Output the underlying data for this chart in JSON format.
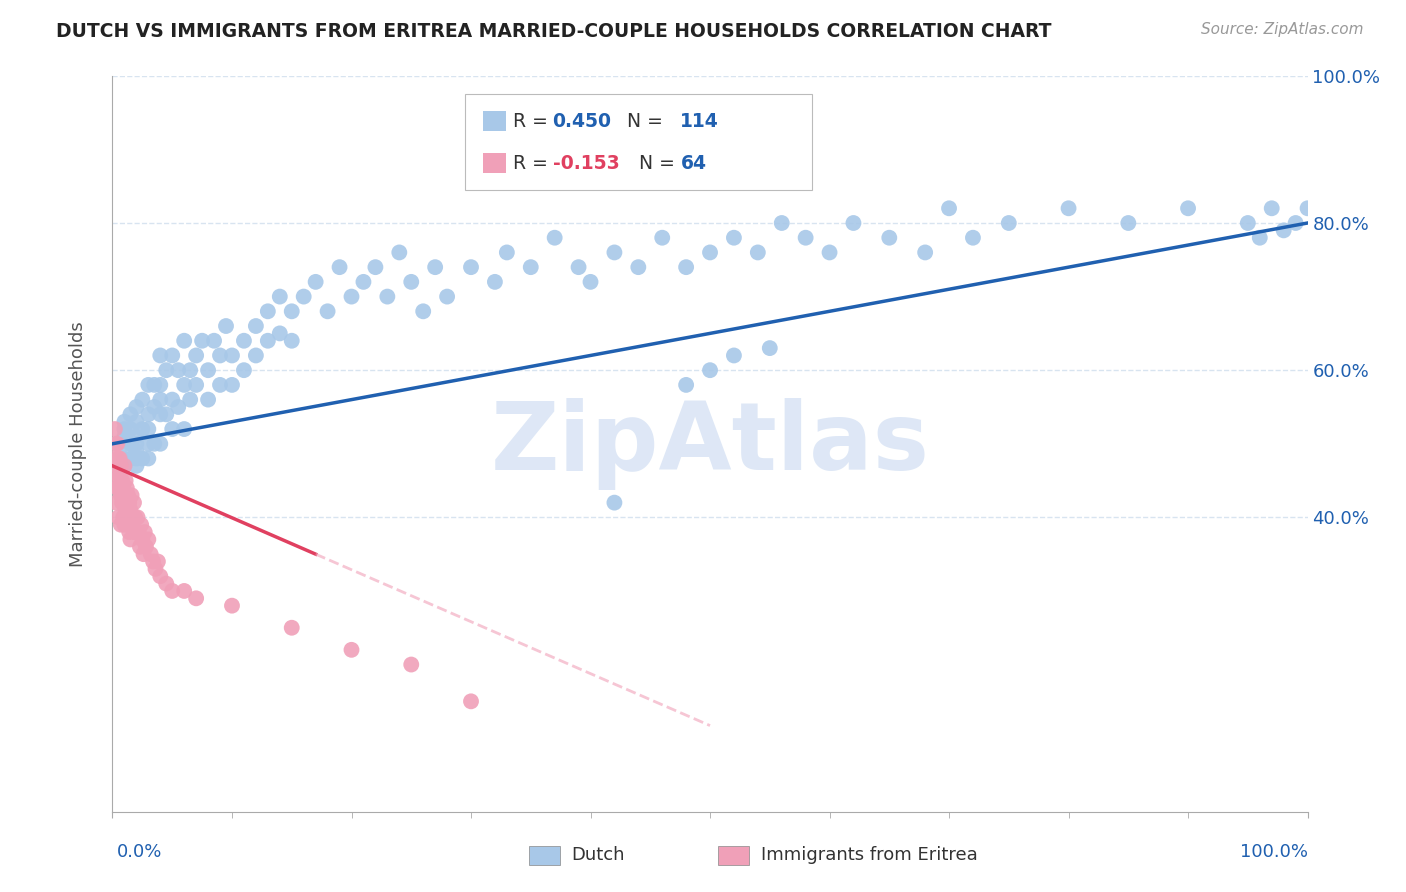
{
  "title": "DUTCH VS IMMIGRANTS FROM ERITREA MARRIED-COUPLE HOUSEHOLDS CORRELATION CHART",
  "source": "Source: ZipAtlas.com",
  "ylabel": "Married-couple Households",
  "R_dutch": 0.45,
  "N_dutch": 114,
  "R_eritrea": -0.153,
  "N_eritrea": 64,
  "color_dutch": "#a8c8e8",
  "color_eritrea": "#f0a0b8",
  "line_color_dutch": "#2060b0",
  "line_color_eritrea": "#e04060",
  "line_color_eritrea_dash": "#f0a0b8",
  "watermark": "ZipAtlas",
  "watermark_color": "#c8d8f0",
  "legend_dutch": "Dutch",
  "legend_eritrea": "Immigrants from Eritrea",
  "ytick_labels": [
    "40.0%",
    "60.0%",
    "80.0%",
    "100.0%"
  ],
  "ytick_vals": [
    0.4,
    0.6,
    0.8,
    1.0
  ],
  "background_color": "#ffffff",
  "grid_color": "#d8e4f0",
  "title_color": "#222222",
  "source_color": "#999999",
  "axis_label_color": "#2060b0",
  "dutch_x": [
    0.01,
    0.01,
    0.01,
    0.01,
    0.01,
    0.01,
    0.015,
    0.015,
    0.015,
    0.015,
    0.02,
    0.02,
    0.02,
    0.02,
    0.02,
    0.02,
    0.02,
    0.025,
    0.025,
    0.025,
    0.03,
    0.03,
    0.03,
    0.03,
    0.03,
    0.035,
    0.035,
    0.035,
    0.04,
    0.04,
    0.04,
    0.04,
    0.04,
    0.045,
    0.045,
    0.05,
    0.05,
    0.05,
    0.055,
    0.055,
    0.06,
    0.06,
    0.06,
    0.065,
    0.065,
    0.07,
    0.07,
    0.075,
    0.08,
    0.08,
    0.085,
    0.09,
    0.09,
    0.095,
    0.1,
    0.1,
    0.11,
    0.11,
    0.12,
    0.12,
    0.13,
    0.13,
    0.14,
    0.14,
    0.15,
    0.15,
    0.16,
    0.17,
    0.18,
    0.19,
    0.2,
    0.21,
    0.22,
    0.23,
    0.24,
    0.25,
    0.26,
    0.27,
    0.28,
    0.3,
    0.32,
    0.33,
    0.35,
    0.37,
    0.39,
    0.4,
    0.42,
    0.44,
    0.46,
    0.48,
    0.5,
    0.52,
    0.54,
    0.56,
    0.58,
    0.6,
    0.62,
    0.65,
    0.68,
    0.7,
    0.72,
    0.75,
    0.8,
    0.85,
    0.9,
    0.95,
    0.97,
    0.99,
    1.0,
    0.98,
    0.96,
    0.5,
    0.52,
    0.48,
    0.55,
    0.42
  ],
  "dutch_y": [
    0.5,
    0.52,
    0.48,
    0.53,
    0.51,
    0.47,
    0.5,
    0.54,
    0.48,
    0.52,
    0.49,
    0.53,
    0.51,
    0.47,
    0.55,
    0.5,
    0.48,
    0.52,
    0.56,
    0.48,
    0.54,
    0.5,
    0.58,
    0.48,
    0.52,
    0.55,
    0.5,
    0.58,
    0.54,
    0.58,
    0.5,
    0.62,
    0.56,
    0.54,
    0.6,
    0.56,
    0.52,
    0.62,
    0.6,
    0.55,
    0.58,
    0.64,
    0.52,
    0.6,
    0.56,
    0.62,
    0.58,
    0.64,
    0.6,
    0.56,
    0.64,
    0.62,
    0.58,
    0.66,
    0.62,
    0.58,
    0.64,
    0.6,
    0.66,
    0.62,
    0.68,
    0.64,
    0.7,
    0.65,
    0.68,
    0.64,
    0.7,
    0.72,
    0.68,
    0.74,
    0.7,
    0.72,
    0.74,
    0.7,
    0.76,
    0.72,
    0.68,
    0.74,
    0.7,
    0.74,
    0.72,
    0.76,
    0.74,
    0.78,
    0.74,
    0.72,
    0.76,
    0.74,
    0.78,
    0.74,
    0.76,
    0.78,
    0.76,
    0.8,
    0.78,
    0.76,
    0.8,
    0.78,
    0.76,
    0.82,
    0.78,
    0.8,
    0.82,
    0.8,
    0.82,
    0.8,
    0.82,
    0.8,
    0.82,
    0.79,
    0.78,
    0.6,
    0.62,
    0.58,
    0.63,
    0.42
  ],
  "eritrea_x": [
    0.002,
    0.002,
    0.002,
    0.003,
    0.003,
    0.003,
    0.004,
    0.004,
    0.004,
    0.005,
    0.005,
    0.005,
    0.006,
    0.006,
    0.007,
    0.007,
    0.007,
    0.008,
    0.008,
    0.009,
    0.009,
    0.01,
    0.01,
    0.01,
    0.011,
    0.011,
    0.012,
    0.012,
    0.013,
    0.013,
    0.014,
    0.014,
    0.015,
    0.015,
    0.016,
    0.016,
    0.017,
    0.018,
    0.018,
    0.019,
    0.02,
    0.021,
    0.022,
    0.023,
    0.024,
    0.025,
    0.026,
    0.027,
    0.028,
    0.03,
    0.032,
    0.034,
    0.036,
    0.038,
    0.04,
    0.045,
    0.05,
    0.06,
    0.07,
    0.1,
    0.15,
    0.2,
    0.25,
    0.3
  ],
  "eritrea_y": [
    0.52,
    0.48,
    0.45,
    0.5,
    0.46,
    0.42,
    0.5,
    0.47,
    0.44,
    0.48,
    0.44,
    0.4,
    0.48,
    0.44,
    0.47,
    0.43,
    0.39,
    0.45,
    0.42,
    0.44,
    0.4,
    0.47,
    0.43,
    0.39,
    0.45,
    0.41,
    0.44,
    0.4,
    0.43,
    0.39,
    0.42,
    0.38,
    0.41,
    0.37,
    0.43,
    0.39,
    0.4,
    0.42,
    0.38,
    0.4,
    0.38,
    0.4,
    0.38,
    0.36,
    0.39,
    0.37,
    0.35,
    0.38,
    0.36,
    0.37,
    0.35,
    0.34,
    0.33,
    0.34,
    0.32,
    0.31,
    0.3,
    0.3,
    0.29,
    0.28,
    0.25,
    0.22,
    0.2,
    0.15
  ]
}
